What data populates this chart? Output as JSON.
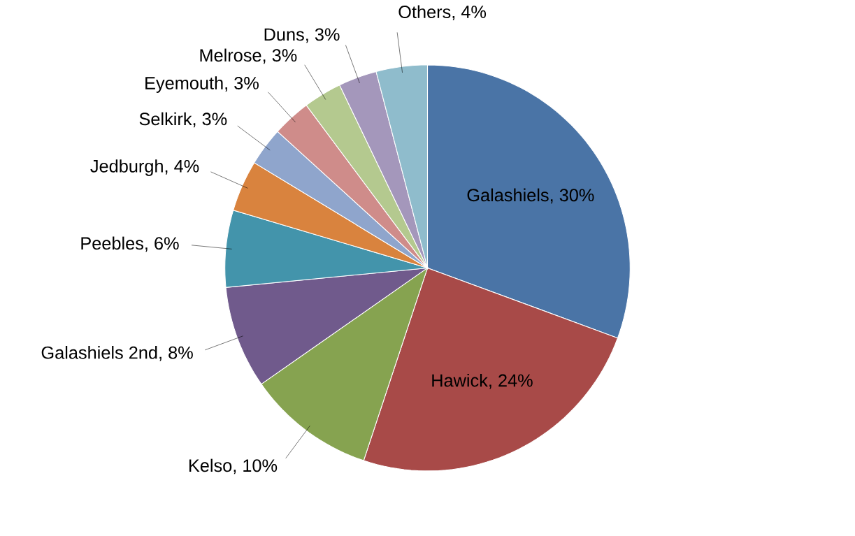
{
  "chart_data": {
    "type": "pie",
    "categories": [
      "Galashiels",
      "Hawick",
      "Kelso",
      "Galashiels 2nd",
      "Peebles",
      "Jedburgh",
      "Selkirk",
      "Eyemouth",
      "Melrose",
      "Duns",
      "Others"
    ],
    "values": [
      30,
      24,
      10,
      8,
      6,
      4,
      3,
      3,
      3,
      3,
      4
    ],
    "value_labels": [
      ", 30%",
      ", 24%",
      ", 10%",
      ", 8%",
      ", 6%",
      ", 4%",
      ", 3%",
      ", 3%",
      ", 3%",
      ", 3%",
      ", 4%"
    ],
    "colors": [
      "#4a74a6",
      "#a84a48",
      "#86a350",
      "#705a8c",
      "#4394ab",
      "#d9833e",
      "#8fa5cc",
      "#cf8c8a",
      "#b4c98f",
      "#a497bb",
      "#8fbccc"
    ]
  }
}
